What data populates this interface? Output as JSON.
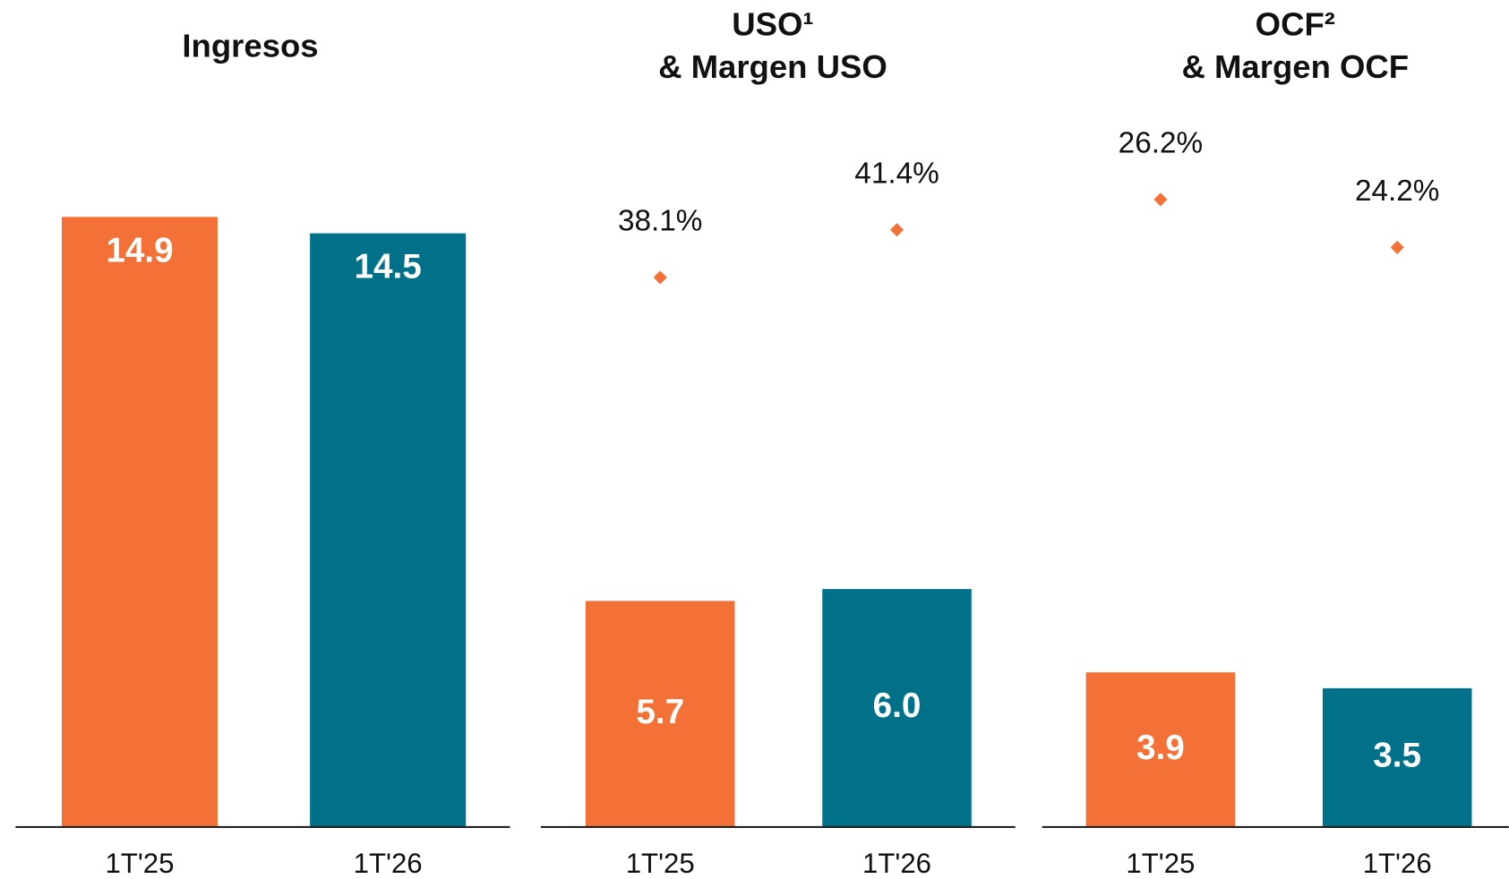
{
  "chart_data": [
    {
      "type": "bar",
      "title": [
        "Ingresos"
      ],
      "categories": [
        "1T'25",
        "1T'26"
      ],
      "series": [
        {
          "values": [
            14.9,
            14.5
          ],
          "colors": [
            "#f37036",
            "#007188"
          ]
        }
      ],
      "ylim": [
        0,
        15.5
      ],
      "label_position": "top"
    },
    {
      "type": "bar",
      "title": [
        "USO¹",
        "& Margen USO"
      ],
      "categories": [
        "1T'25",
        "1T'26"
      ],
      "series": [
        {
          "values": [
            5.7,
            6.0
          ],
          "value_labels": [
            "5.7",
            "6.0"
          ],
          "colors": [
            "#f37036",
            "#007188"
          ]
        },
        {
          "axis": "y2",
          "values": [
            38.1,
            41.4
          ],
          "value_labels": [
            "38.1%",
            "41.4%"
          ],
          "color": "#f37036"
        }
      ],
      "ylim": [
        0,
        16
      ],
      "y2lim": [
        0,
        44
      ],
      "label_position": "center"
    },
    {
      "type": "bar",
      "title": [
        "OCF²",
        "& Margen OCF"
      ],
      "categories": [
        "1T'25",
        "1T'26"
      ],
      "series": [
        {
          "values": [
            3.9,
            3.5
          ],
          "colors": [
            "#f37036",
            "#007188"
          ]
        },
        {
          "axis": "y2",
          "values": [
            26.2,
            24.2
          ],
          "value_labels": [
            "26.2%",
            "24.2%"
          ],
          "color": "#f37036"
        }
      ],
      "ylim": [
        0,
        16
      ],
      "y2lim": [
        0,
        26.5
      ],
      "label_position": "center"
    }
  ]
}
